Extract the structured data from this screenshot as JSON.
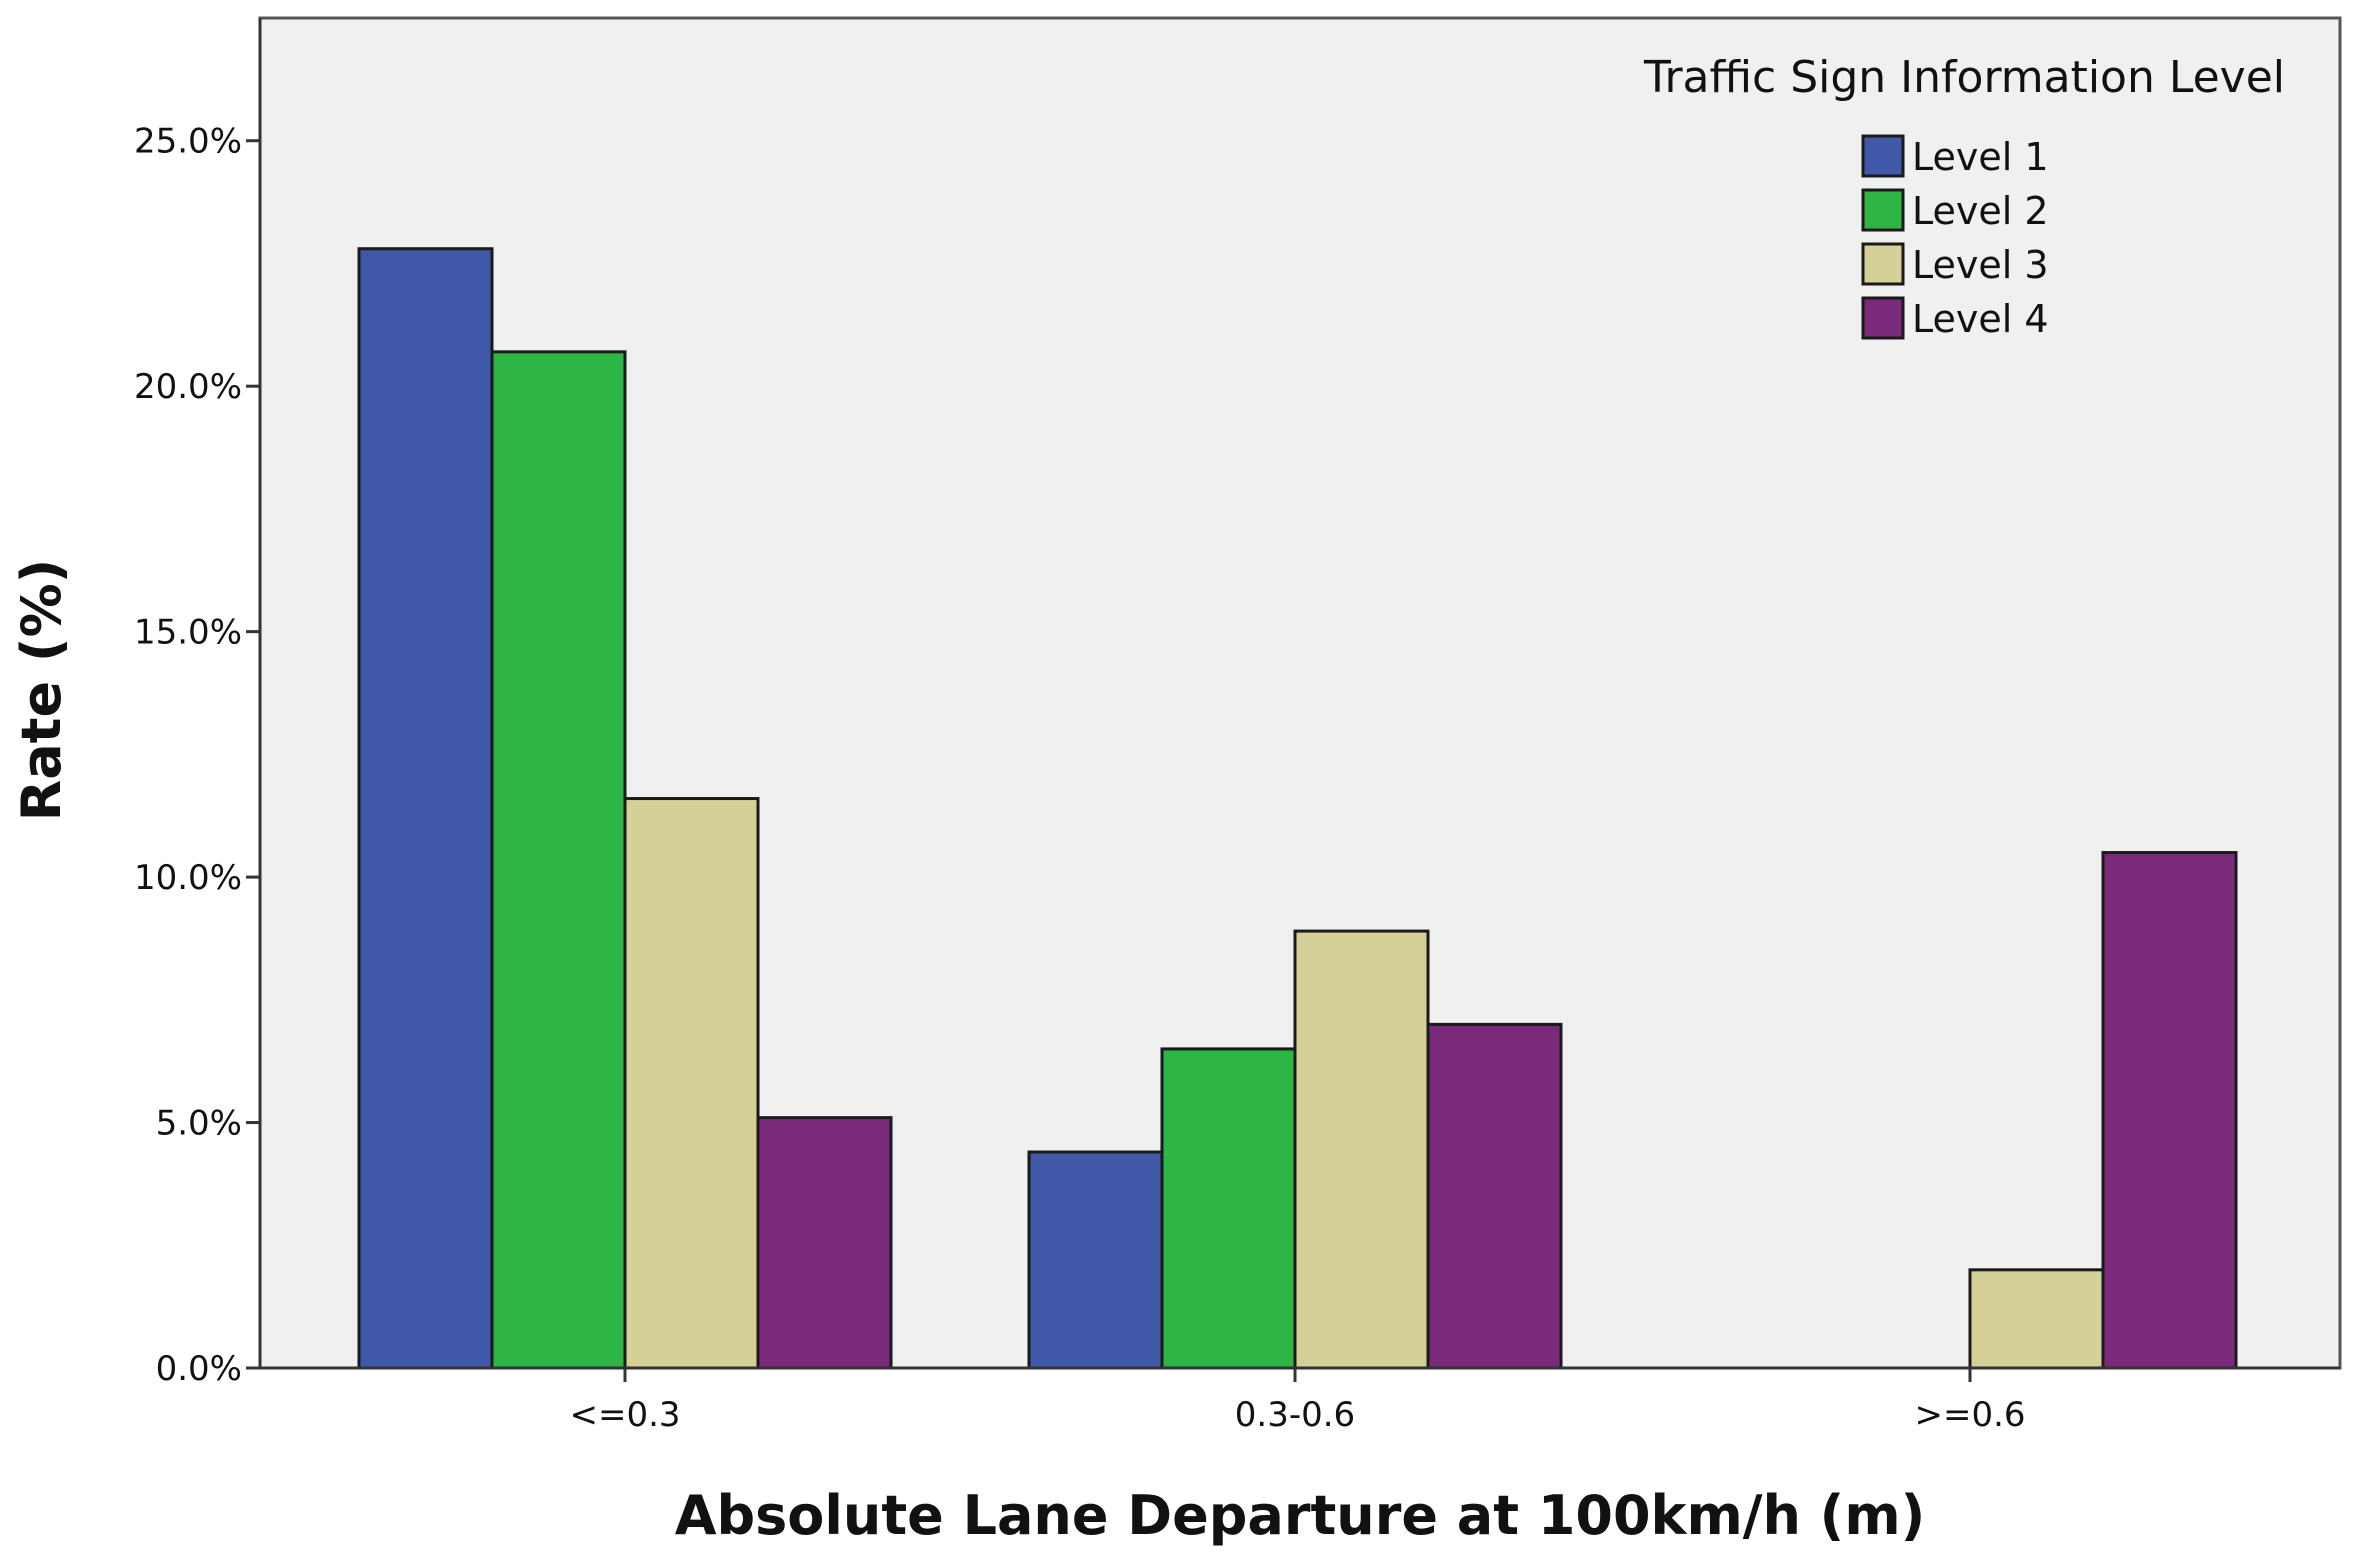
{
  "chart_data": {
    "type": "bar",
    "title": "",
    "xlabel": "Absolute Lane Departure at 100km/h (m)",
    "ylabel": "Rate (%)",
    "categories": [
      "<=0.3",
      "0.3-0.6",
      ">=0.6"
    ],
    "series": [
      {
        "name": "Level 1",
        "color": "#3f58a8",
        "values": [
          22.8,
          4.4,
          0.0
        ]
      },
      {
        "name": "Level 2",
        "color": "#2db546",
        "values": [
          20.7,
          6.5,
          0.0
        ]
      },
      {
        "name": "Level 3",
        "color": "#d5cf98",
        "values": [
          11.6,
          8.9,
          2.0
        ]
      },
      {
        "name": "Level 4",
        "color": "#7b2a7b",
        "values": [
          5.1,
          7.0,
          10.5
        ]
      }
    ],
    "ylim": [
      0,
      27.5
    ],
    "yticks": [
      0,
      5,
      10,
      15,
      20,
      25
    ],
    "ytick_labels": [
      "0.0%",
      "5.0%",
      "10.0%",
      "15.0%",
      "20.0%",
      "25.0%"
    ],
    "legend": {
      "title": "Traffic Sign Information Level",
      "position": "top-right"
    },
    "plot_background": "#f0f0f0",
    "grid": false
  }
}
